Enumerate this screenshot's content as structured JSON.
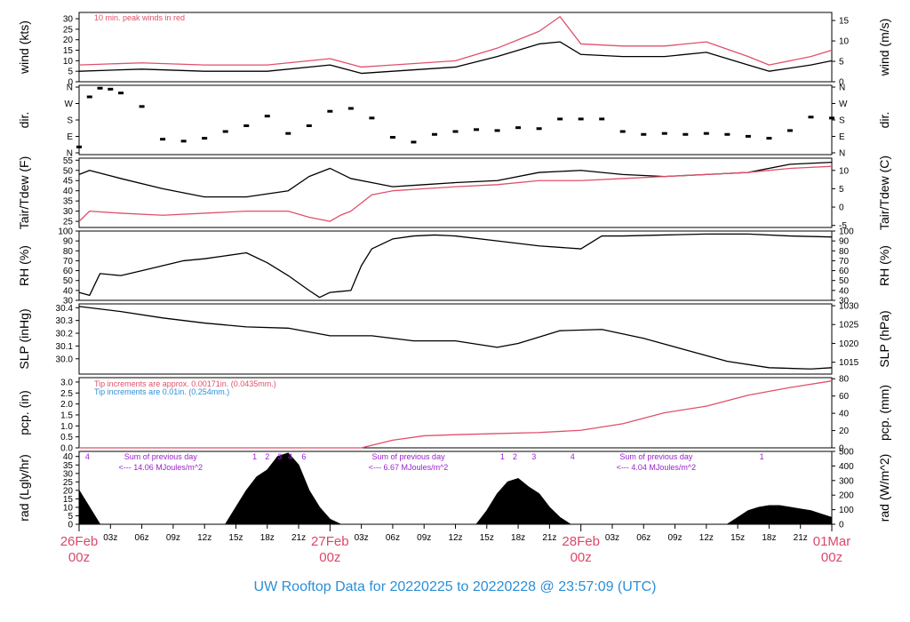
{
  "title": "UW Rooftop Data for 20220225  to  20220228 @ 23:57:09  (UTC)",
  "colors": {
    "black": "#000000",
    "red": "#e0506a",
    "blue": "#2a8fd8",
    "purple": "#9a22cc",
    "date": "#d94868",
    "title": "#2a8fd8"
  },
  "chart_data": [
    {
      "type": "line",
      "id": "wind",
      "ylabel_left": "wind (kts)",
      "ylabel_right": "wind (m/s)",
      "ylim": [
        0,
        33
      ],
      "yticks_left": [
        0,
        5,
        10,
        15,
        20,
        25,
        30
      ],
      "yticks_right": [
        0,
        5,
        10,
        15
      ],
      "annotation": "10 min. peak winds in red",
      "series": [
        {
          "color": "black",
          "x": [
            0,
            6,
            12,
            18,
            24,
            27,
            30,
            36,
            40,
            44,
            46,
            48,
            52,
            56,
            60,
            64,
            66,
            70,
            72
          ],
          "y": [
            5,
            6,
            5,
            5,
            8,
            4,
            5,
            7,
            12,
            18,
            19,
            13,
            12,
            12,
            14,
            8,
            5,
            8,
            10
          ]
        },
        {
          "color": "red",
          "x": [
            0,
            6,
            12,
            18,
            24,
            27,
            30,
            36,
            40,
            44,
            46,
            48,
            52,
            56,
            60,
            64,
            66,
            70,
            72
          ],
          "y": [
            8,
            9,
            8,
            8,
            11,
            7,
            8,
            10,
            16,
            24,
            31,
            18,
            17,
            17,
            19,
            12,
            8,
            12,
            15
          ]
        }
      ]
    },
    {
      "type": "scatter",
      "id": "dir",
      "ylabel_left": "dir.",
      "ylabel_right": "dir.",
      "ylim": [
        0,
        360
      ],
      "yticks_left_labels": [
        "N",
        "E",
        "S",
        "W",
        "N"
      ],
      "yticks_right_labels": [
        "N",
        "E",
        "S",
        "W",
        "N"
      ],
      "series": [
        {
          "color": "black",
          "x": [
            0,
            1,
            2,
            3,
            4,
            6,
            8,
            10,
            12,
            14,
            16,
            18,
            20,
            22,
            24,
            26,
            28,
            30,
            32,
            34,
            36,
            38,
            40,
            42,
            44,
            46,
            48,
            50,
            52,
            54,
            56,
            58,
            60,
            62,
            64,
            66,
            68,
            70,
            72
          ],
          "y": [
            40,
            300,
            345,
            340,
            320,
            250,
            80,
            70,
            85,
            120,
            150,
            200,
            110,
            150,
            225,
            240,
            190,
            90,
            65,
            105,
            120,
            130,
            125,
            140,
            135,
            185,
            185,
            185,
            120,
            105,
            110,
            105,
            110,
            105,
            95,
            85,
            125,
            195,
            190
          ]
        }
      ]
    },
    {
      "type": "line",
      "id": "temp",
      "ylabel_left": "Tair/Tdew (F)",
      "ylabel_right": "Tair/Tdew (C)",
      "ylim": [
        22,
        56
      ],
      "yticks_left": [
        25,
        30,
        35,
        40,
        45,
        50,
        55
      ],
      "yticks_right": [
        -5,
        0,
        5,
        10
      ],
      "series": [
        {
          "color": "black",
          "x": [
            0,
            1,
            4,
            8,
            12,
            16,
            20,
            22,
            24,
            26,
            28,
            30,
            33,
            36,
            40,
            44,
            48,
            52,
            56,
            60,
            64,
            68,
            72
          ],
          "y": [
            48,
            50,
            46,
            41,
            37,
            37,
            40,
            47,
            51,
            46,
            44,
            42,
            43,
            44,
            45,
            49,
            50,
            48,
            47,
            48,
            49,
            53,
            54
          ]
        },
        {
          "color": "red",
          "x": [
            0,
            1,
            4,
            8,
            12,
            16,
            20,
            22,
            24,
            25,
            26,
            28,
            30,
            33,
            36,
            40,
            44,
            48,
            52,
            56,
            60,
            64,
            68,
            72
          ],
          "y": [
            25,
            30,
            29,
            28,
            29,
            30,
            30,
            27,
            25,
            28,
            30,
            38,
            40,
            41,
            42,
            43,
            45,
            45,
            46,
            47,
            48,
            49,
            51,
            52
          ]
        }
      ]
    },
    {
      "type": "line",
      "id": "rh",
      "ylabel_left": "RH (%)",
      "ylabel_right": "RH (%)",
      "ylim": [
        30,
        100
      ],
      "yticks_left": [
        30,
        40,
        50,
        60,
        70,
        80,
        90,
        100
      ],
      "yticks_right": [
        30,
        40,
        50,
        60,
        70,
        80,
        90,
        100
      ],
      "series": [
        {
          "color": "black",
          "x": [
            0,
            1,
            2,
            4,
            6,
            8,
            10,
            12,
            14,
            16,
            18,
            20,
            22,
            23,
            24,
            26,
            27,
            28,
            30,
            32,
            34,
            36,
            40,
            44,
            48,
            50,
            52,
            56,
            60,
            64,
            68,
            72
          ],
          "y": [
            38,
            35,
            57,
            55,
            60,
            65,
            70,
            72,
            75,
            78,
            68,
            55,
            40,
            33,
            38,
            40,
            65,
            82,
            92,
            95,
            96,
            95,
            90,
            85,
            82,
            95,
            95,
            96,
            97,
            97,
            95,
            94
          ]
        }
      ]
    },
    {
      "type": "line",
      "id": "slp",
      "ylabel_left": "SLP (inHg)",
      "ylabel_right": "SLP (hPa)",
      "ylim": [
        29.88,
        30.43
      ],
      "yticks_left": [
        30.0,
        30.1,
        30.2,
        30.3,
        30.4
      ],
      "yticks_right": [
        1015,
        1020,
        1025,
        1030
      ],
      "series": [
        {
          "color": "black",
          "x": [
            0,
            4,
            8,
            12,
            16,
            20,
            24,
            28,
            32,
            36,
            40,
            42,
            46,
            50,
            54,
            58,
            62,
            66,
            70,
            72
          ],
          "y": [
            30.41,
            30.37,
            30.32,
            30.28,
            30.25,
            30.24,
            30.18,
            30.18,
            30.14,
            30.14,
            30.09,
            30.12,
            30.22,
            30.23,
            30.16,
            30.07,
            29.98,
            29.93,
            29.92,
            29.93
          ]
        }
      ]
    },
    {
      "type": "line",
      "id": "pcp",
      "ylabel_left": "pcp. (in)",
      "ylabel_right": "pcp. (mm)",
      "ylim": [
        0,
        3.2
      ],
      "yticks_left": [
        0.0,
        0.5,
        1.0,
        1.5,
        2.0,
        2.5,
        3.0
      ],
      "yticks_right": [
        0,
        20,
        40,
        60,
        80
      ],
      "annotation_red": "Tip increments are approx. 0.00171in. (0.0435mm.)",
      "annotation_blue": "Tip increments are 0.01in. (0.254mm.)",
      "series": [
        {
          "color": "red",
          "x": [
            0,
            24,
            27,
            30,
            33,
            36,
            40,
            44,
            48,
            52,
            56,
            60,
            64,
            68,
            72
          ],
          "y": [
            0,
            0,
            0,
            0.35,
            0.55,
            0.6,
            0.65,
            0.7,
            0.8,
            1.1,
            1.6,
            1.9,
            2.4,
            2.75,
            3.05
          ]
        }
      ]
    },
    {
      "type": "area",
      "id": "rad",
      "ylabel_left": "rad (Lgly/hr)",
      "ylabel_right": "rad (W/m^2)",
      "ylim": [
        0,
        43
      ],
      "yticks_left": [
        0,
        5,
        10,
        15,
        20,
        25,
        30,
        35,
        40
      ],
      "yticks_right": [
        0,
        100,
        200,
        300,
        400,
        500
      ],
      "series": [
        {
          "color": "black",
          "x": [
            0,
            1,
            2,
            14,
            15,
            16,
            17,
            18,
            19,
            20,
            21,
            22,
            23,
            24,
            25,
            38,
            39,
            40,
            41,
            42,
            43,
            44,
            45,
            46,
            47,
            62,
            63,
            64,
            65,
            66,
            67,
            68,
            69,
            70,
            71,
            72
          ],
          "y": [
            20,
            10,
            0,
            0,
            10,
            20,
            28,
            32,
            40,
            42,
            35,
            20,
            10,
            3,
            0,
            0,
            8,
            18,
            25,
            27,
            22,
            18,
            10,
            4,
            0,
            0,
            4,
            8,
            10,
            11,
            11,
            10,
            9,
            8,
            6,
            4
          ]
        }
      ],
      "top_labels": [
        {
          "text": "4",
          "x": 0.8
        },
        {
          "text": "1",
          "x": 16.8
        },
        {
          "text": "2",
          "x": 18
        },
        {
          "text": "3",
          "x": 19.2
        },
        {
          "text": "4",
          "x": 20.2
        },
        {
          "text": "6",
          "x": 21.5
        },
        {
          "text": "1",
          "x": 40.5
        },
        {
          "text": "2",
          "x": 41.7
        },
        {
          "text": "3",
          "x": 43.5
        },
        {
          "text": "4",
          "x": 47.2
        },
        {
          "text": "1",
          "x": 65.3
        }
      ],
      "day_sums": [
        {
          "line1": "Sum of previous day",
          "line2": "<--- 14.06 MJoules/m^2",
          "x": 7.8
        },
        {
          "line1": "Sum of previous day",
          "line2": "<--- 6.67 MJoules/m^2",
          "x": 31.5
        },
        {
          "line1": "Sum of previous day",
          "line2": "<--- 4.04 MJoules/m^2",
          "x": 55.2
        }
      ]
    }
  ],
  "x_axis": {
    "xlim": [
      0,
      72
    ],
    "hour_ticks": [
      {
        "x": 3,
        "label": "03z"
      },
      {
        "x": 6,
        "label": "06z"
      },
      {
        "x": 9,
        "label": "09z"
      },
      {
        "x": 12,
        "label": "12z"
      },
      {
        "x": 15,
        "label": "15z"
      },
      {
        "x": 18,
        "label": "18z"
      },
      {
        "x": 21,
        "label": "21z"
      },
      {
        "x": 27,
        "label": "03z"
      },
      {
        "x": 30,
        "label": "06z"
      },
      {
        "x": 33,
        "label": "09z"
      },
      {
        "x": 36,
        "label": "12z"
      },
      {
        "x": 39,
        "label": "15z"
      },
      {
        "x": 42,
        "label": "18z"
      },
      {
        "x": 45,
        "label": "21z"
      },
      {
        "x": 51,
        "label": "03z"
      },
      {
        "x": 54,
        "label": "06z"
      },
      {
        "x": 57,
        "label": "09z"
      },
      {
        "x": 60,
        "label": "12z"
      },
      {
        "x": 63,
        "label": "15z"
      },
      {
        "x": 66,
        "label": "18z"
      },
      {
        "x": 69,
        "label": "21z"
      }
    ],
    "date_ticks": [
      {
        "x": 0,
        "date": "26Feb",
        "hour": "00z"
      },
      {
        "x": 24,
        "date": "27Feb",
        "hour": "00z"
      },
      {
        "x": 48,
        "date": "28Feb",
        "hour": "00z"
      },
      {
        "x": 72,
        "date": "01Mar",
        "hour": "00z"
      }
    ]
  }
}
